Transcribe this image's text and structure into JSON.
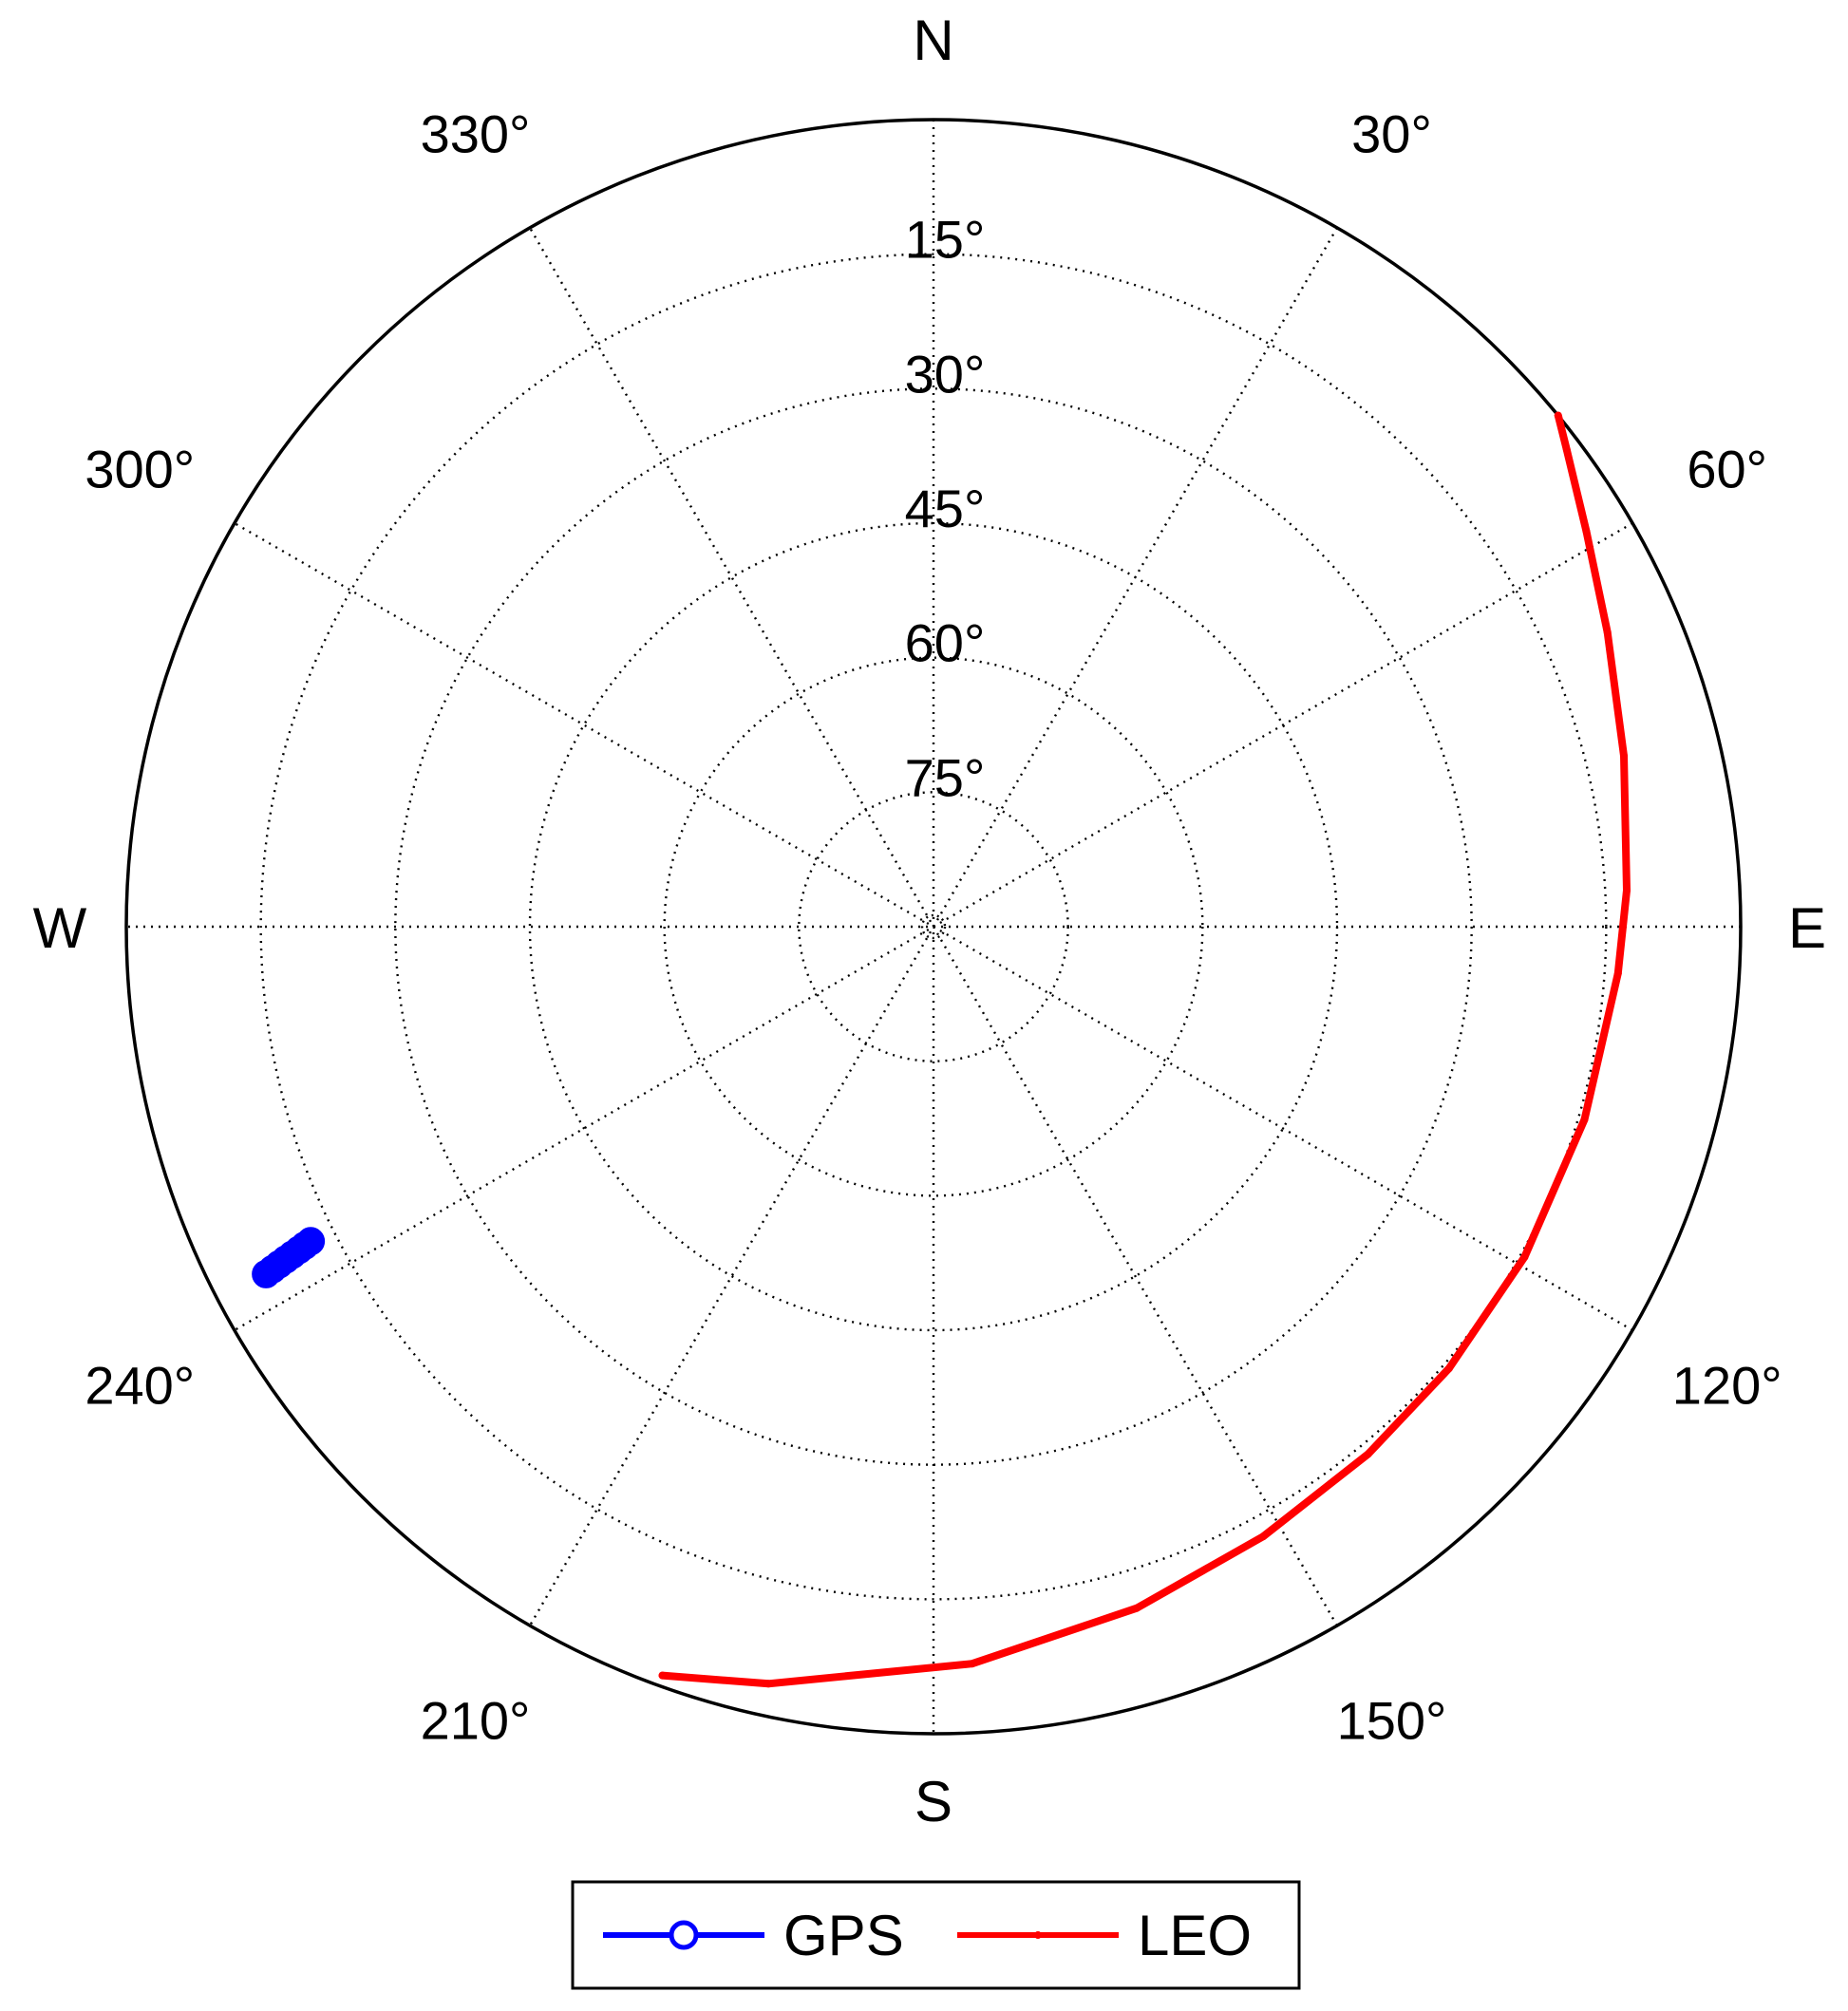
{
  "chart_data": {
    "type": "polar-skyplot",
    "title": "",
    "direction_labels": [
      "N",
      "E",
      "S",
      "W"
    ],
    "azimuth_tick_labels": [
      "30°",
      "60°",
      "120°",
      "150°",
      "210°",
      "240°",
      "300°",
      "330°"
    ],
    "azimuth_ticks_deg": [
      30,
      60,
      120,
      150,
      210,
      240,
      300,
      330
    ],
    "elevation_ticks_deg": [
      15,
      30,
      45,
      60,
      75
    ],
    "elevation_tick_labels": [
      "15°",
      "30°",
      "45°",
      "60°",
      "75°"
    ],
    "elevation_range_deg": [
      0,
      90
    ],
    "grid": "dotted",
    "legend_position": "bottom",
    "series": [
      {
        "name": "GPS",
        "color": "#0000ff",
        "marker": "circle",
        "points": [
          {
            "az": 242.5,
            "el": 6.1
          },
          {
            "az": 242.6,
            "el": 7.0
          },
          {
            "az": 242.7,
            "el": 7.9
          },
          {
            "az": 242.8,
            "el": 8.8
          },
          {
            "az": 242.9,
            "el": 9.7
          },
          {
            "az": 243.0,
            "el": 10.6
          },
          {
            "az": 243.1,
            "el": 11.4
          },
          {
            "az": 243.2,
            "el": 12.2
          }
        ]
      },
      {
        "name": "LEO",
        "color": "#ff0000",
        "marker": "dot",
        "points": [
          {
            "az": 50.7,
            "el": 0.0
          },
          {
            "az": 53.0,
            "el": 1.6
          },
          {
            "az": 58.8,
            "el": 4.9
          },
          {
            "az": 66.4,
            "el": 8.0
          },
          {
            "az": 76.1,
            "el": 10.7
          },
          {
            "az": 87.0,
            "el": 12.6
          },
          {
            "az": 93.9,
            "el": 13.5
          },
          {
            "az": 106.5,
            "el": 14.3
          },
          {
            "az": 119.2,
            "el": 14.5
          },
          {
            "az": 130.6,
            "el": 14.3
          },
          {
            "az": 140.5,
            "el": 13.8
          },
          {
            "az": 151.6,
            "el": 12.7
          },
          {
            "az": 163.4,
            "el": 10.7
          },
          {
            "az": 177.0,
            "el": 7.7
          },
          {
            "az": 192.3,
            "el": 3.6
          },
          {
            "az": 199.9,
            "el": 1.2
          }
        ]
      }
    ]
  }
}
